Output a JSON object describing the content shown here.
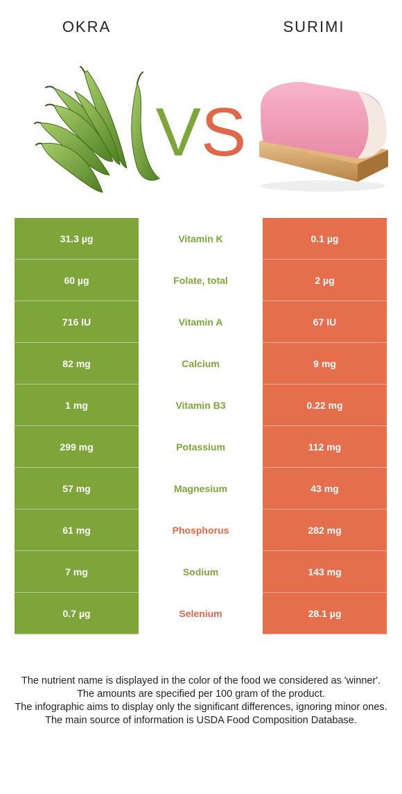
{
  "header": {
    "left_title": "OKRA",
    "right_title": "SURIMI",
    "vs_v": "V",
    "vs_s": "S"
  },
  "colors": {
    "okra": "#7ea53a",
    "surimi": "#e56e4d"
  },
  "rows": [
    {
      "left": "31.3 µg",
      "name": "Vitamin K",
      "right": "0.1 µg",
      "winner": "left"
    },
    {
      "left": "60 µg",
      "name": "Folate, total",
      "right": "2 µg",
      "winner": "left"
    },
    {
      "left": "716 IU",
      "name": "Vitamin A",
      "right": "67 IU",
      "winner": "left"
    },
    {
      "left": "82 mg",
      "name": "Calcium",
      "right": "9 mg",
      "winner": "left"
    },
    {
      "left": "1 mg",
      "name": "Vitamin B3",
      "right": "0.22 mg",
      "winner": "left"
    },
    {
      "left": "299 mg",
      "name": "Potassium",
      "right": "112 mg",
      "winner": "left"
    },
    {
      "left": "57 mg",
      "name": "Magnesium",
      "right": "43 mg",
      "winner": "left"
    },
    {
      "left": "61 mg",
      "name": "Phosphorus",
      "right": "282 mg",
      "winner": "right"
    },
    {
      "left": "7 mg",
      "name": "Sodium",
      "right": "143 mg",
      "winner": "left"
    },
    {
      "left": "0.7 µg",
      "name": "Selenium",
      "right": "28.1 µg",
      "winner": "right"
    }
  ],
  "footer": {
    "line1": "The nutrient name is displayed in the color of the food we considered as 'winner'.",
    "line2": "The amounts are specified per 100 gram of the product.",
    "line3": "The infographic aims to display only the significant differences, ignoring minor ones.",
    "line4": "The main source of information is USDA Food Composition Database."
  }
}
